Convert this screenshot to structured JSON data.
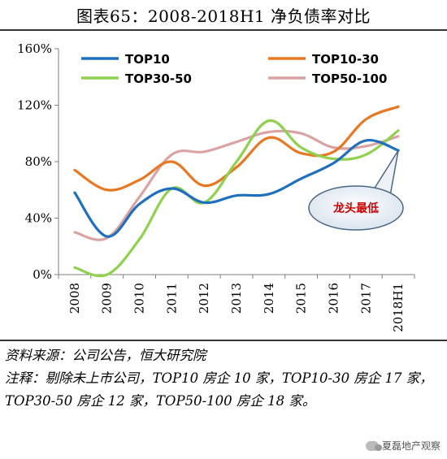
{
  "header": {
    "title": "图表65：2008-2018H1 净负债率对比"
  },
  "chart_data": {
    "type": "line",
    "categories": [
      "2008",
      "2009",
      "2010",
      "2011",
      "2012",
      "2013",
      "2014",
      "2015",
      "2016",
      "2017",
      "2018H1"
    ],
    "y_ticks": [
      "0%",
      "40%",
      "80%",
      "120%",
      "160%"
    ],
    "ylim": [
      0,
      160
    ],
    "grid": false,
    "legend_position": "top",
    "series": [
      {
        "name": "TOP10",
        "color": "#1f6fbf",
        "values": [
          58,
          27,
          50,
          61,
          51,
          56,
          57,
          68,
          79,
          95,
          88
        ]
      },
      {
        "name": "TOP10-30",
        "color": "#e87722",
        "values": [
          74,
          60,
          67,
          80,
          63,
          76,
          97,
          86,
          87,
          110,
          119
        ]
      },
      {
        "name": "TOP30-50",
        "color": "#8fd14f",
        "values": [
          5,
          0,
          25,
          61,
          51,
          80,
          109,
          90,
          82,
          85,
          102
        ]
      },
      {
        "name": "TOP50-100",
        "color": "#d9a3a3",
        "values": [
          30,
          26,
          55,
          85,
          87,
          94,
          101,
          100,
          90,
          91,
          98
        ]
      }
    ],
    "annotation": {
      "text": "龙头最低",
      "color": "#cc0000",
      "points_to": {
        "category": "2018H1",
        "value": 88
      }
    }
  },
  "notes": {
    "source": "资料来源：公司公告，恒大研究院",
    "remark": "注释：剔除未上市公司，TOP10 房企 10 家，TOP10-30 房企 17 家，TOP30-50 房企 12 家，TOP50-100 房企 18 家。"
  },
  "watermark": {
    "text": "夏磊地产观察"
  }
}
